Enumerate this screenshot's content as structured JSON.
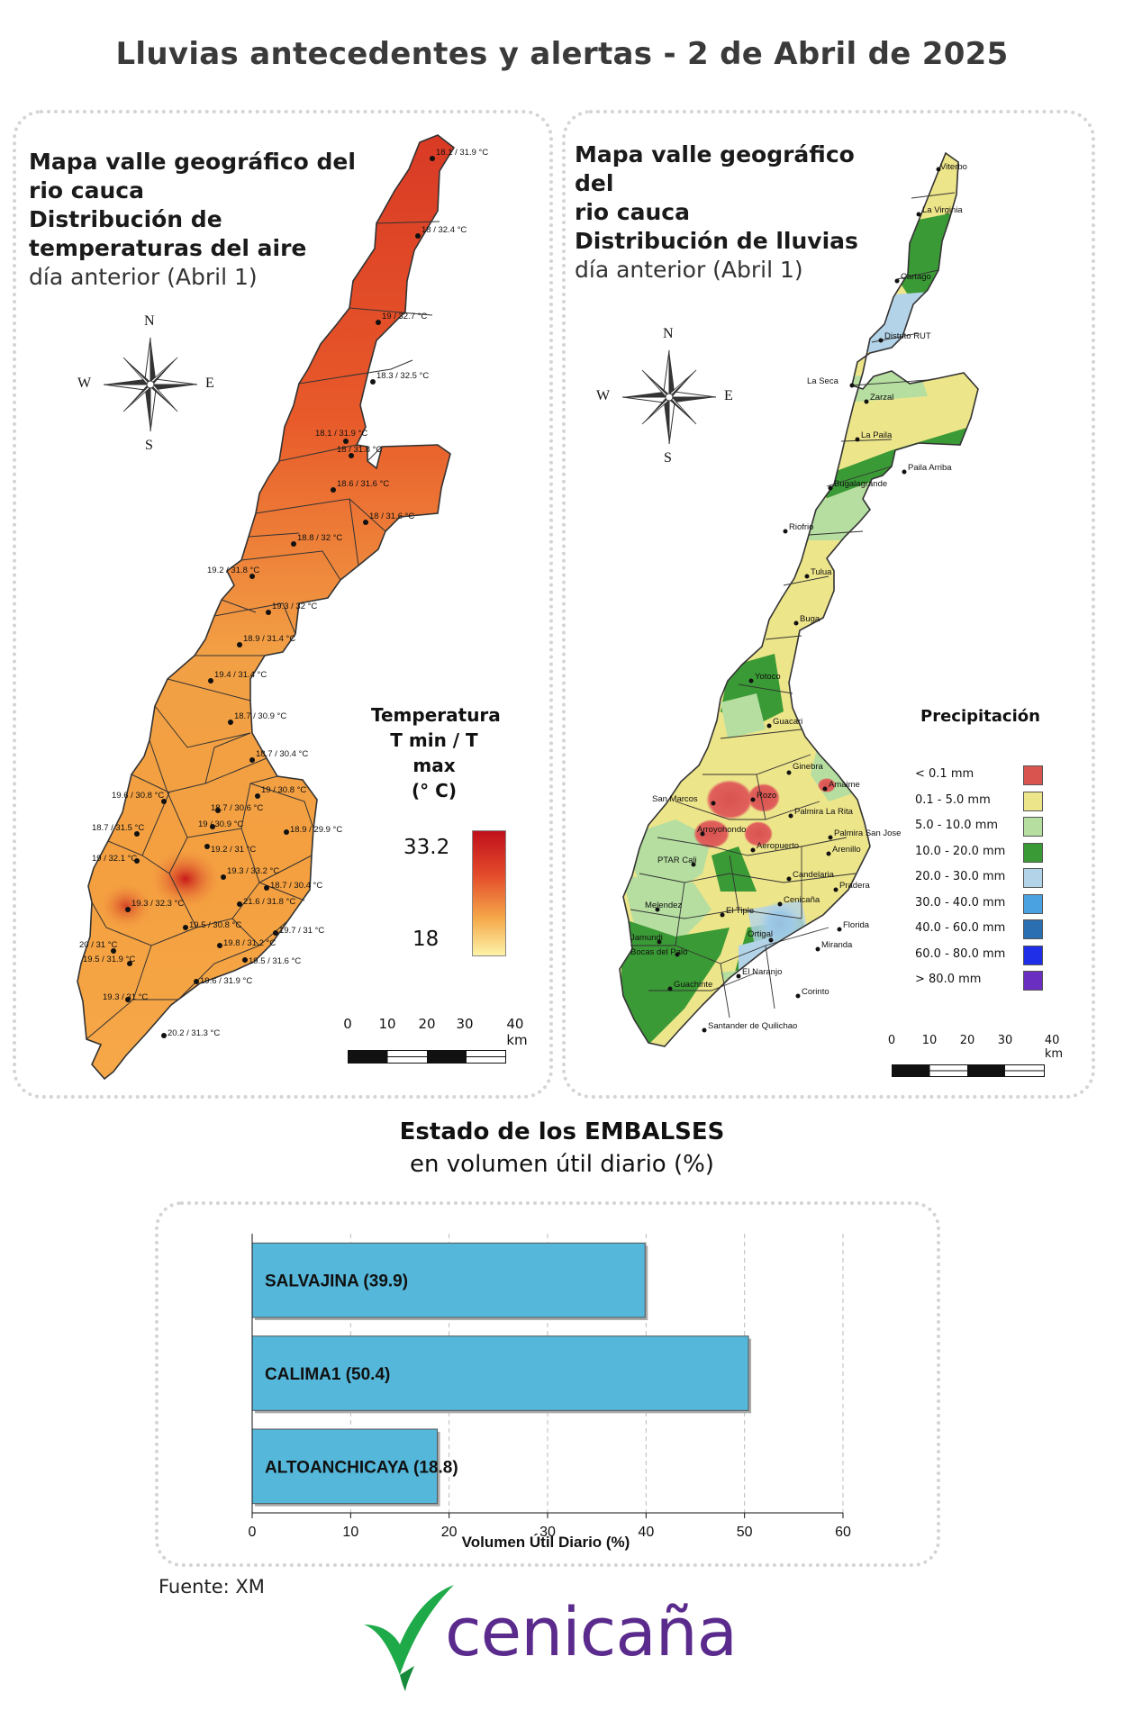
{
  "header": {
    "title": "Lluvias antecedentes y alertas - 2 de Abril de 2025"
  },
  "temp_map": {
    "title_line1": "Mapa valle geográfico del",
    "title_line2": "rio cauca",
    "title_line3": "Distribución de",
    "title_line4": "temperaturas del aire",
    "title_line5": "día anterior (Abril 1)",
    "legend_line1": "Temperatura",
    "legend_line2": "T min / T max",
    "legend_line3": "(° C)",
    "legend_max": "33.2",
    "legend_min": "18",
    "stations": [
      "18.1 / 31.9 °C",
      "18 / 32.4 °C",
      "19 / 32.7 °C",
      "18.3 / 32.5 °C",
      "18.1 / 31.9 °C",
      "18 / 31.8 °C",
      "18.6 / 31.6 °C",
      "18 / 31.6 °C",
      "18.8 / 32 °C",
      "19.2 / 31.8 °C",
      "19.3 / 32 °C",
      "18.9 / 31.4 °C",
      "19.4 / 31.4 °C",
      "18.7 / 30.9 °C",
      "18.7 / 30.4 °C",
      "19.6 / 30.8 °C",
      "19 / 30.8 °C",
      "18.7 / 30.6 °C",
      "18.7 / 31.5 °C",
      "19 / 30.9 °C",
      "18.9 / 29.9 °C",
      "19.2 / 31 °C",
      "19 / 32.1 °C",
      "19.3 / 33.2 °C",
      "18.7 / 30.4 °C",
      "19.3 / 32.3 °C",
      "21.6 / 31.8 °C",
      "19.5 / 30.8 °C",
      "19.7 / 31 °C",
      "20 / 31 °C",
      "19.8 / 31.2 °C",
      "19.5 / 31.9 °C",
      "19.5 / 31.6 °C",
      "19.6 / 31.9 °C",
      "19.3 / 31 °C",
      "20.2 / 31.3 °C"
    ]
  },
  "rain_map": {
    "title_line1": "Mapa valle geográfico del",
    "title_line2": "rio cauca",
    "title_line3": "Distribución de lluvias",
    "title_line4": "día anterior (Abril 1)",
    "legend_title": "Precipitación",
    "legend": [
      {
        "label": "< 0.1 mm",
        "color": "#d9534f"
      },
      {
        "label": "0.1 - 5.0 mm",
        "color": "#ede58a"
      },
      {
        "label": "5.0 - 10.0 mm",
        "color": "#b5dea0"
      },
      {
        "label": "10.0 - 20.0 mm",
        "color": "#3a9a35"
      },
      {
        "label": "20.0 - 30.0 mm",
        "color": "#b3d3e8"
      },
      {
        "label": "30.0 - 40.0 mm",
        "color": "#4aa3e0"
      },
      {
        "label": "40.0 - 60.0 mm",
        "color": "#2b6fb3"
      },
      {
        "label": "60.0 - 80.0 mm",
        "color": "#1f2fe8"
      },
      {
        "label": "> 80.0 mm",
        "color": "#6a2fc0"
      }
    ],
    "places": [
      "Viterbo",
      "La Virginia",
      "Cartago",
      "Distrito RUT",
      "La Seca",
      "Zarzal",
      "La Paila",
      "Paila Arriba",
      "Bugalagrande",
      "Riofrio",
      "Tulua",
      "Buga",
      "Yotoco",
      "Guacari",
      "Ginebra",
      "Amaime",
      "San Marcos",
      "Rozo",
      "Palmira La Rita",
      "Arroyohondo",
      "Palmira San Jose",
      "Aeropuerto",
      "PTAR Cali",
      "Arenillo",
      "Candelaria",
      "Pradera",
      "Melendez",
      "El Tiple",
      "Cenicaña",
      "Florida",
      "Jamundi",
      "Bocas del Palo",
      "Ortigal",
      "Miranda",
      "El Naranjo",
      "Guachinte",
      "Corinto",
      "Santander de Quilichao"
    ]
  },
  "compass": {
    "n": "N",
    "s": "S",
    "e": "E",
    "w": "W"
  },
  "scale": {
    "t0": "0",
    "t10": "10",
    "t20": "20",
    "t30": "30",
    "t40": "40 km"
  },
  "reservoirs": {
    "title_bold": "Estado de los EMBALSES",
    "title_sub": "en volumen útil diario (%)",
    "label_salvajina": "SALVAJINA",
    "value_salvajina": "(39.9)",
    "label_calima": "CALIMA1",
    "value_calima": "(50.4)",
    "label_alto": "ALTOANCHICAYA",
    "value_alto": "(18.8)"
  },
  "chart_data": {
    "type": "bar",
    "orientation": "horizontal",
    "categories": [
      "SALVAJINA",
      "CALIMA1",
      "ALTOANCHICAYA"
    ],
    "values": [
      39.9,
      50.4,
      18.8
    ],
    "xlabel": "Volumen Útil Diario (%)",
    "xlim": [
      0,
      60
    ],
    "xticks": [
      0,
      10,
      20,
      30,
      40,
      50,
      60
    ],
    "bar_color": "#55b8db",
    "grid": "vertical dashed"
  },
  "footer": {
    "source": "Fuente: XM",
    "logo_text": "cenicaña"
  },
  "colors": {
    "title": "#3a3a3a",
    "logo_purple": "#5a2a8c",
    "logo_green": "#1faa4a"
  }
}
